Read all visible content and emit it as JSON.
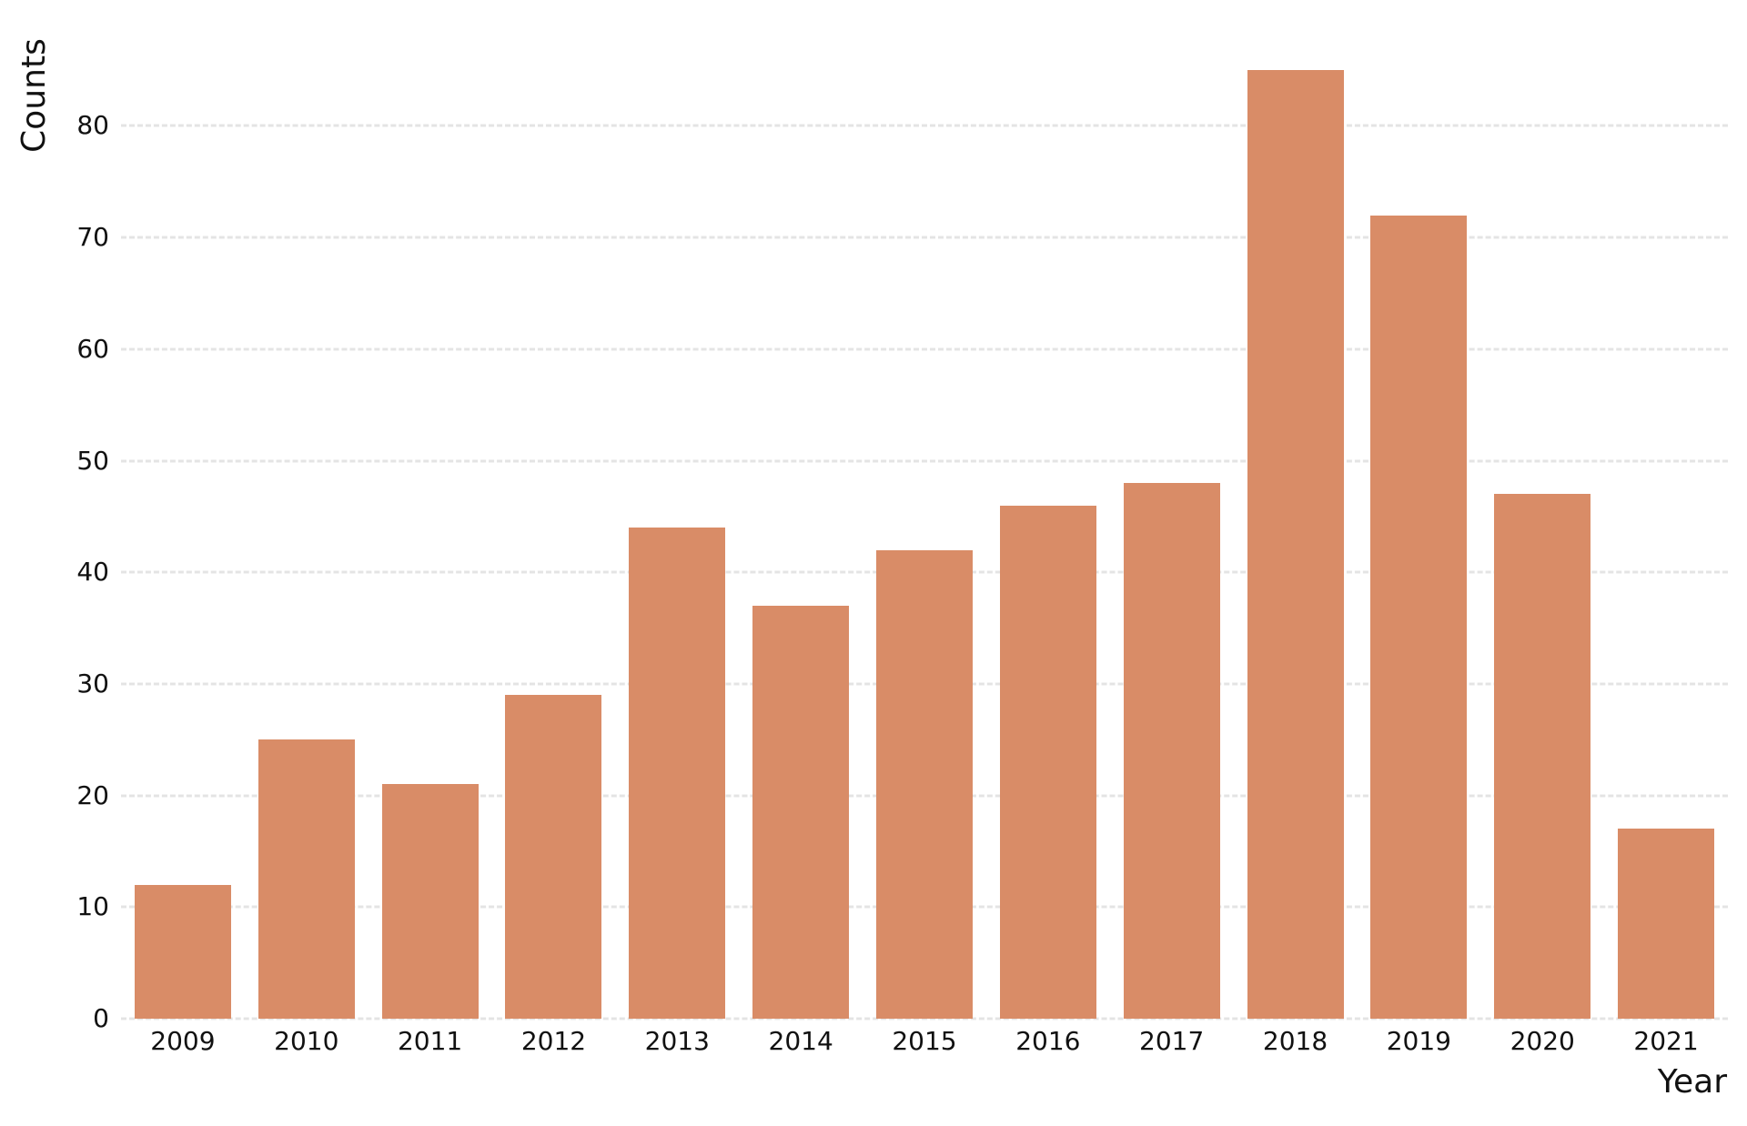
{
  "chart": {
    "ylabel": "Counts",
    "xlabel": "Year",
    "bar_color": "#d98c67",
    "grid_color": "#e4e4e4",
    "y_ticks": [
      "0",
      "10",
      "20",
      "30",
      "40",
      "50",
      "60",
      "70",
      "80"
    ],
    "x_ticks": [
      "2009",
      "2010",
      "2011",
      "2012",
      "2013",
      "2014",
      "2015",
      "2016",
      "2017",
      "2018",
      "2019",
      "2020",
      "2021"
    ]
  },
  "chart_data": {
    "type": "bar",
    "title": "",
    "xlabel": "Year",
    "ylabel": "Counts",
    "categories": [
      "2009",
      "2010",
      "2011",
      "2012",
      "2013",
      "2014",
      "2015",
      "2016",
      "2017",
      "2018",
      "2019",
      "2020",
      "2021"
    ],
    "values": [
      12,
      25,
      21,
      29,
      44,
      37,
      42,
      46,
      48,
      85,
      72,
      47,
      17
    ],
    "ylim": [
      0,
      88
    ],
    "yticks": [
      0,
      10,
      20,
      30,
      40,
      50,
      60,
      70,
      80
    ],
    "grid": {
      "y": true,
      "x": false,
      "style": "dashed"
    },
    "legend": null,
    "bar_color": "#d98c67"
  }
}
